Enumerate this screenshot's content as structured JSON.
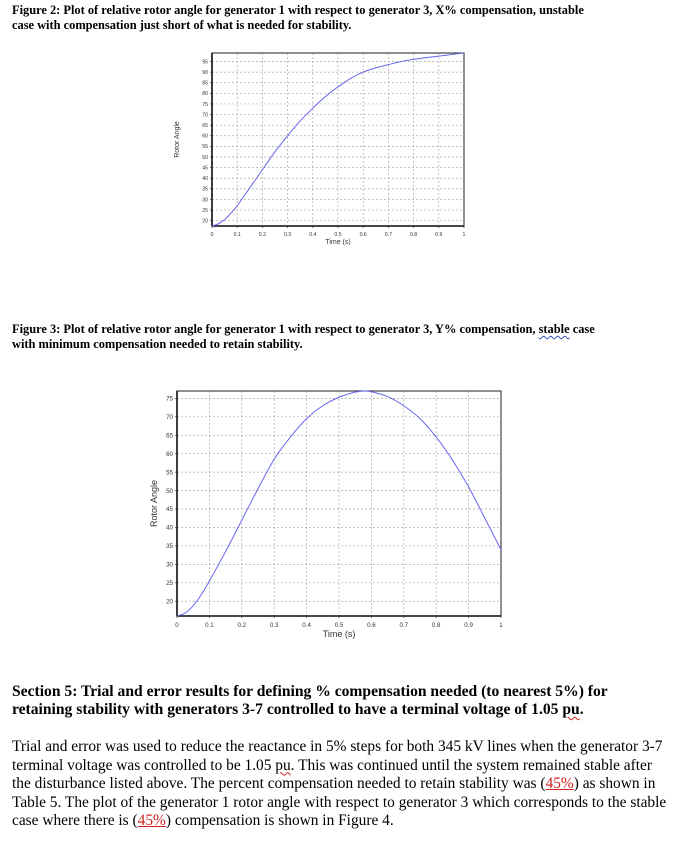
{
  "figure2": {
    "caption_line1": "Figure 2:  Plot of relative rotor angle for generator 1 with respect to generator 3, X% compensation, unstable",
    "caption_line2": "case with compensation just short of what is needed for stability."
  },
  "figure3": {
    "caption_pre": "Figure 3:  Plot of relative rotor angle for generator 1 with respect to generator 3, Y% compensation, ",
    "caption_flagged": "stable",
    "caption_post": " case",
    "caption_line2": "with minimum compensation needed to retain stability."
  },
  "section5": {
    "heading_line1": "Section 5: Trial and error results for defining % compensation needed (to nearest 5%) for",
    "heading_line2_pre": "retaining stability with generators 3-7 controlled to have a terminal voltage of 1.05 ",
    "heading_line2_flagged": "pu",
    "heading_line2_post": ".",
    "para_part1": "Trial and error was used to reduce the reactance in 5% steps for both 345 kV lines when the generator 3-7 terminal voltage was controlled to be 1.05 ",
    "para_flagged": "pu",
    "para_part2": ".  This was continued until the system remained stable after the disturbance listed above.  The percent compensation needed to retain stability was (",
    "value1": "45%",
    "para_part3": ") as shown in Table 5.  The plot of the generator 1 rotor angle with respect to generator 3 which corresponds to the stable case where there is (",
    "value2": "45%",
    "para_part4": ") compensation is shown in Figure 4."
  },
  "colors": {
    "curve": "#6666ee",
    "grid": "#aaaaaa",
    "frame": "#333333",
    "highlight_red": "#d02020"
  },
  "chart_data": [
    {
      "type": "line",
      "title": "Figure 2: Plot of relative rotor angle for generator 1 with respect to generator 3, X% compensation, unstable case",
      "xlabel": "Time (s)",
      "ylabel": "Rotor Angle",
      "xlim": [
        0,
        1
      ],
      "ylim": [
        17.5,
        99
      ],
      "grid": true,
      "x_ticks": [
        "0",
        "0.1",
        "0.2",
        "0.3",
        "0.4",
        "0.5",
        "0.6",
        "0.7",
        "0.8",
        "0.9",
        "1"
      ],
      "y_ticks": [
        "20",
        "25",
        "30",
        "35",
        "40",
        "45",
        "50",
        "55",
        "60",
        "65",
        "70",
        "75",
        "80",
        "85",
        "90",
        "95"
      ],
      "series": [
        {
          "name": "Rotor Angle",
          "x": [
            0,
            0.025,
            0.05,
            0.075,
            0.1,
            0.15,
            0.2,
            0.25,
            0.3,
            0.35,
            0.4,
            0.45,
            0.5,
            0.55,
            0.6,
            0.65,
            0.7,
            0.75,
            0.8,
            0.85,
            0.9,
            0.95,
            1.0
          ],
          "values": [
            17.5,
            18.5,
            20.5,
            23.5,
            27,
            35.5,
            44,
            52.5,
            60,
            67,
            73,
            78.5,
            83,
            87,
            90,
            92,
            93.5,
            95,
            96,
            96.8,
            97.5,
            98.3,
            99
          ]
        }
      ]
    },
    {
      "type": "line",
      "title": "Figure 3: Plot of relative rotor angle for generator 1 with respect to generator 3, Y% compensation, stable case",
      "xlabel": "Time (s)",
      "ylabel": "Rotor Angle",
      "xlim": [
        0,
        1
      ],
      "ylim": [
        16,
        77
      ],
      "grid": true,
      "x_ticks": [
        "0",
        "0.1",
        "0.2",
        "0.3",
        "0.4",
        "0.5",
        "0.6",
        "0.7",
        "0.8",
        "0.9",
        "1"
      ],
      "y_ticks": [
        "20",
        "25",
        "30",
        "35",
        "40",
        "45",
        "50",
        "55",
        "60",
        "65",
        "70",
        "75"
      ],
      "series": [
        {
          "name": "Rotor Angle",
          "x": [
            0,
            0.025,
            0.05,
            0.075,
            0.1,
            0.15,
            0.2,
            0.25,
            0.3,
            0.35,
            0.4,
            0.45,
            0.5,
            0.55,
            0.58,
            0.6,
            0.65,
            0.7,
            0.75,
            0.8,
            0.85,
            0.9,
            0.95,
            1.0
          ],
          "values": [
            16,
            16.8,
            18.8,
            21.8,
            25.5,
            33.5,
            42,
            50.5,
            58.5,
            64.5,
            69.5,
            73,
            75.3,
            76.7,
            77,
            76.8,
            75.5,
            73,
            69.5,
            64.5,
            58.3,
            51,
            42.5,
            34
          ]
        }
      ]
    }
  ]
}
